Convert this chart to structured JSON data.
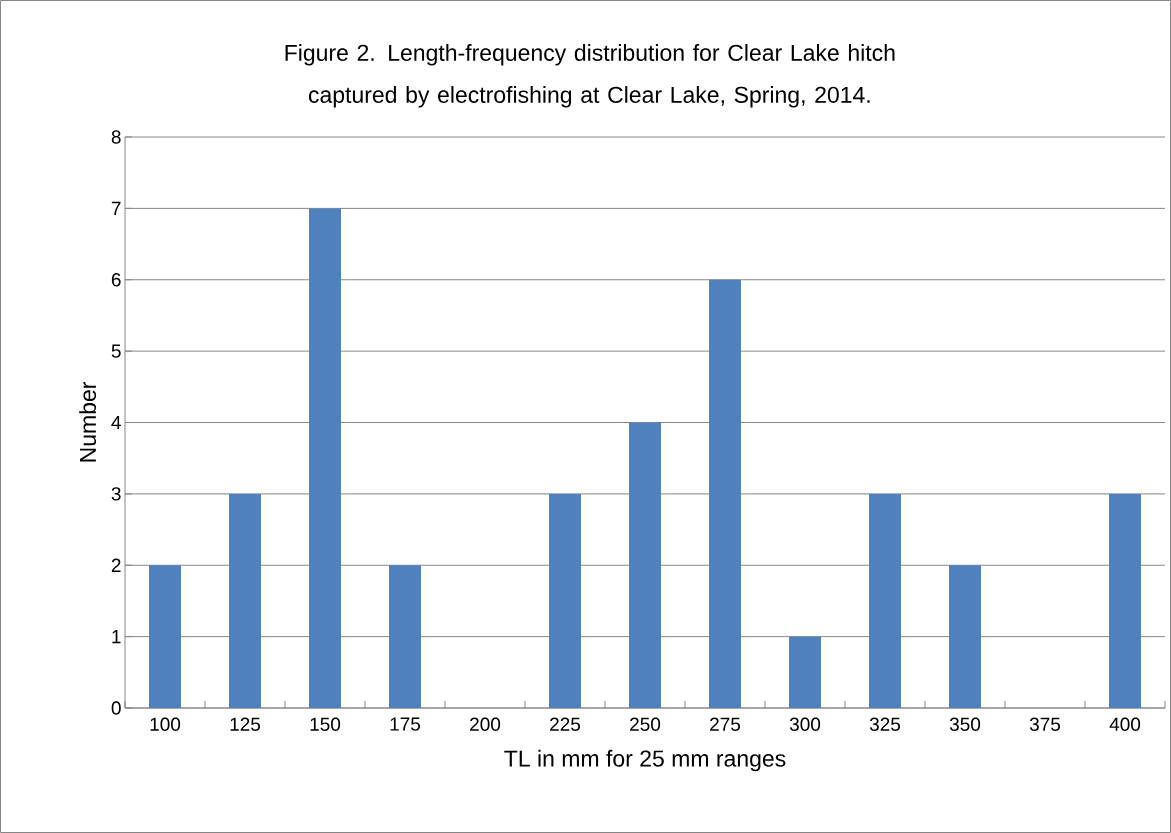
{
  "chart_data": {
    "type": "bar",
    "title": "Figure 2.  Length-frequency distribution for Clear Lake hitch captured by electrofishing at Clear Lake, Spring, 2014.",
    "xlabel": "TL in mm for 25 mm ranges",
    "ylabel": "Number",
    "categories": [
      "100",
      "125",
      "150",
      "175",
      "200",
      "225",
      "250",
      "275",
      "300",
      "325",
      "350",
      "375",
      "400"
    ],
    "values": [
      2,
      3,
      7,
      2,
      0,
      3,
      4,
      6,
      1,
      3,
      2,
      0,
      3
    ],
    "color": "#4f81bd",
    "ylim": [
      0,
      8
    ],
    "yticks": [
      0,
      1,
      2,
      3,
      4,
      5,
      6,
      7,
      8
    ],
    "grid": "y"
  }
}
